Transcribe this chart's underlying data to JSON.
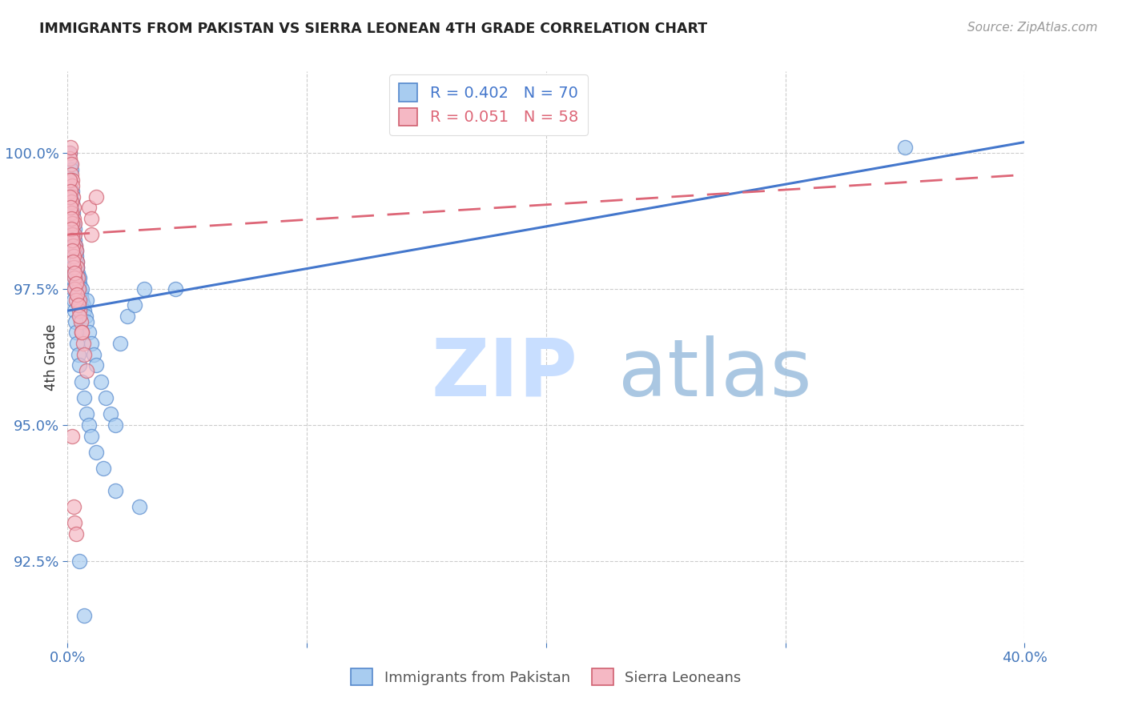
{
  "title": "IMMIGRANTS FROM PAKISTAN VS SIERRA LEONEAN 4TH GRADE CORRELATION CHART",
  "source": "Source: ZipAtlas.com",
  "ylabel": "4th Grade",
  "xlim": [
    0.0,
    40.0
  ],
  "ylim": [
    91.0,
    101.5
  ],
  "yticks": [
    92.5,
    95.0,
    97.5,
    100.0
  ],
  "ytick_labels": [
    "92.5%",
    "95.0%",
    "97.5%",
    "100.0%"
  ],
  "xtick_positions": [
    0.0,
    10.0,
    20.0,
    30.0,
    40.0
  ],
  "xtick_labels": [
    "0.0%",
    "",
    "",
    "",
    "40.0%"
  ],
  "legend_blue_label": "Immigrants from Pakistan",
  "legend_pink_label": "Sierra Leoneans",
  "blue_R": "0.402",
  "blue_N": "70",
  "pink_R": "0.051",
  "pink_N": "58",
  "blue_color": "#A8CCF0",
  "pink_color": "#F5B8C4",
  "blue_edge_color": "#5588CC",
  "pink_edge_color": "#D06070",
  "blue_line_color": "#4477CC",
  "pink_line_color": "#DD6677",
  "blue_scatter_x": [
    0.08,
    0.12,
    0.1,
    0.15,
    0.18,
    0.2,
    0.22,
    0.25,
    0.28,
    0.3,
    0.32,
    0.35,
    0.38,
    0.4,
    0.42,
    0.45,
    0.48,
    0.5,
    0.55,
    0.6,
    0.65,
    0.7,
    0.75,
    0.8,
    0.9,
    1.0,
    1.1,
    1.2,
    1.4,
    1.6,
    1.8,
    2.0,
    2.2,
    2.5,
    2.8,
    3.2,
    0.1,
    0.12,
    0.14,
    0.16,
    0.18,
    0.2,
    0.22,
    0.25,
    0.28,
    0.32,
    0.36,
    0.4,
    0.45,
    0.5,
    0.6,
    0.7,
    0.8,
    0.9,
    1.0,
    1.2,
    1.5,
    2.0,
    3.0,
    4.5,
    0.25,
    0.3,
    0.35,
    0.4,
    0.5,
    0.6,
    0.8,
    35.0,
    0.5,
    0.7
  ],
  "blue_scatter_y": [
    99.5,
    99.8,
    100.0,
    99.7,
    99.3,
    99.1,
    98.9,
    98.7,
    98.6,
    98.4,
    98.3,
    98.2,
    98.0,
    97.9,
    97.8,
    97.7,
    97.6,
    97.5,
    97.4,
    97.3,
    97.2,
    97.1,
    97.0,
    96.9,
    96.7,
    96.5,
    96.3,
    96.1,
    95.8,
    95.5,
    95.2,
    95.0,
    96.5,
    97.0,
    97.2,
    97.5,
    97.8,
    98.0,
    98.2,
    98.1,
    97.9,
    97.7,
    97.5,
    97.3,
    97.1,
    96.9,
    96.7,
    96.5,
    96.3,
    96.1,
    95.8,
    95.5,
    95.2,
    95.0,
    94.8,
    94.5,
    94.2,
    93.8,
    93.5,
    97.5,
    98.5,
    98.3,
    98.1,
    97.9,
    97.7,
    97.5,
    97.3,
    100.1,
    92.5,
    91.5
  ],
  "pink_scatter_x": [
    0.08,
    0.1,
    0.12,
    0.14,
    0.16,
    0.18,
    0.2,
    0.22,
    0.24,
    0.26,
    0.28,
    0.3,
    0.32,
    0.35,
    0.38,
    0.4,
    0.42,
    0.45,
    0.48,
    0.5,
    0.55,
    0.6,
    0.65,
    0.7,
    0.8,
    0.9,
    1.0,
    1.2,
    0.1,
    0.12,
    0.14,
    0.16,
    0.18,
    0.2,
    0.22,
    0.24,
    0.26,
    0.28,
    0.3,
    0.35,
    0.1,
    0.12,
    0.14,
    0.16,
    0.18,
    0.2,
    0.22,
    0.3,
    0.35,
    0.4,
    0.45,
    0.5,
    0.6,
    1.0,
    0.2,
    0.25,
    0.28,
    0.35
  ],
  "pink_scatter_y": [
    100.0,
    99.9,
    100.1,
    99.8,
    99.6,
    99.5,
    99.4,
    99.2,
    99.0,
    98.8,
    98.7,
    98.5,
    98.3,
    98.2,
    98.0,
    97.9,
    97.7,
    97.5,
    97.3,
    97.1,
    96.9,
    96.7,
    96.5,
    96.3,
    96.0,
    99.0,
    98.8,
    99.2,
    99.5,
    99.3,
    99.1,
    98.9,
    98.7,
    98.5,
    98.3,
    98.1,
    97.9,
    97.7,
    97.5,
    97.3,
    99.2,
    99.0,
    98.8,
    98.6,
    98.4,
    98.2,
    98.0,
    97.8,
    97.6,
    97.4,
    97.2,
    97.0,
    96.7,
    98.5,
    94.8,
    93.5,
    93.2,
    93.0
  ],
  "blue_trendline_x0": 0.0,
  "blue_trendline_y0": 97.1,
  "blue_trendline_x1": 40.0,
  "blue_trendline_y1": 100.2,
  "pink_trendline_x0": 0.0,
  "pink_trendline_y0": 98.5,
  "pink_trendline_x1": 40.0,
  "pink_trendline_y1": 99.6
}
